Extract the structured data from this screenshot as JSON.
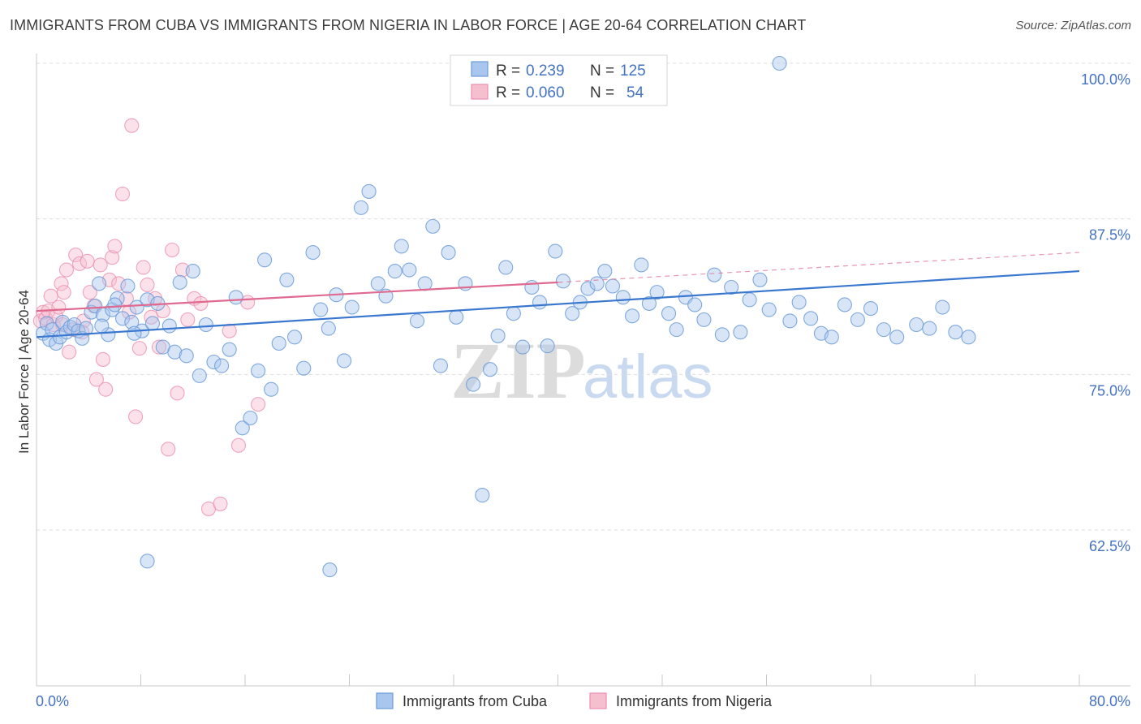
{
  "header": {
    "title": "IMMIGRANTS FROM CUBA VS IMMIGRANTS FROM NIGERIA IN LABOR FORCE | AGE 20-64 CORRELATION CHART",
    "source": "Source: ZipAtlas.com"
  },
  "watermark": {
    "zip": "ZIP",
    "atlas": "atlas"
  },
  "legend": {
    "r_label": "R =",
    "n_label": "N =",
    "cuba": {
      "r": "0.239",
      "n": "125"
    },
    "nigeria": {
      "r": "0.060",
      "n": "54"
    }
  },
  "bottom_legend": {
    "cuba": "Immigrants from Cuba",
    "nigeria": "Immigrants from Nigeria"
  },
  "colors": {
    "cuba_fill": "#a8c6ee",
    "cuba_stroke": "#6b9bd8",
    "cuba_line": "#3a78d0",
    "nigeria_fill": "#f6bfd0",
    "nigeria_stroke": "#ec8fae",
    "nigeria_line": "#e0698f"
  },
  "chart_data": {
    "type": "scatter",
    "title": "IMMIGRANTS FROM CUBA VS IMMIGRANTS FROM NIGERIA IN LABOR FORCE | AGE 20-64 CORRELATION CHART",
    "xlabel": "",
    "ylabel": "In Labor Force | Age 20-64",
    "xlim": [
      0,
      80
    ],
    "ylim": [
      52,
      101
    ],
    "x_tick_labels": [
      "0.0%",
      "80.0%"
    ],
    "y_ticks": [
      62.5,
      75.0,
      87.5,
      100.0
    ],
    "y_tick_labels": [
      "62.5%",
      "75.0%",
      "87.5%",
      "100.0%"
    ],
    "grid": true,
    "series": [
      {
        "name": "Immigrants from Cuba",
        "r": 0.239,
        "n": 125,
        "trend": {
          "x0": 0,
          "y0": 78.0,
          "x1": 80,
          "y1": 83.3
        },
        "points": [
          [
            0.5,
            78.3
          ],
          [
            0.8,
            79.1
          ],
          [
            1.0,
            77.8
          ],
          [
            1.2,
            78.6
          ],
          [
            1.5,
            77.5
          ],
          [
            1.8,
            78.0
          ],
          [
            2.0,
            79.2
          ],
          [
            2.3,
            78.4
          ],
          [
            2.6,
            78.8
          ],
          [
            2.9,
            79.0
          ],
          [
            3.2,
            78.5
          ],
          [
            3.5,
            77.9
          ],
          [
            3.8,
            78.7
          ],
          [
            4.2,
            80.0
          ],
          [
            4.5,
            80.5
          ],
          [
            4.8,
            82.3
          ],
          [
            5.1,
            79.8
          ],
          [
            5.5,
            78.2
          ],
          [
            5.8,
            80.2
          ],
          [
            6.2,
            81.1
          ],
          [
            6.6,
            79.5
          ],
          [
            7.0,
            82.1
          ],
          [
            7.3,
            79.2
          ],
          [
            7.7,
            80.4
          ],
          [
            8.1,
            78.5
          ],
          [
            8.5,
            81.0
          ],
          [
            8.9,
            79.1
          ],
          [
            9.3,
            80.7
          ],
          [
            9.7,
            77.2
          ],
          [
            10.2,
            78.9
          ],
          [
            10.6,
            76.8
          ],
          [
            11.0,
            82.4
          ],
          [
            11.5,
            76.5
          ],
          [
            12.0,
            83.3
          ],
          [
            12.5,
            74.9
          ],
          [
            13.0,
            79.0
          ],
          [
            13.6,
            76.0
          ],
          [
            14.2,
            75.7
          ],
          [
            14.8,
            77.0
          ],
          [
            15.3,
            81.2
          ],
          [
            15.8,
            70.7
          ],
          [
            16.4,
            71.5
          ],
          [
            17.0,
            75.3
          ],
          [
            17.5,
            84.2
          ],
          [
            18.0,
            73.8
          ],
          [
            18.6,
            77.5
          ],
          [
            19.2,
            82.6
          ],
          [
            19.8,
            78.0
          ],
          [
            20.5,
            75.5
          ],
          [
            21.2,
            84.8
          ],
          [
            21.8,
            80.2
          ],
          [
            22.4,
            78.7
          ],
          [
            23.0,
            81.4
          ],
          [
            23.6,
            76.1
          ],
          [
            24.2,
            80.4
          ],
          [
            24.9,
            88.4
          ],
          [
            25.5,
            89.7
          ],
          [
            26.2,
            82.3
          ],
          [
            26.8,
            81.3
          ],
          [
            27.5,
            83.3
          ],
          [
            28.0,
            85.3
          ],
          [
            28.6,
            83.4
          ],
          [
            29.2,
            79.3
          ],
          [
            29.8,
            82.3
          ],
          [
            30.4,
            86.9
          ],
          [
            31.0,
            75.7
          ],
          [
            31.6,
            84.8
          ],
          [
            32.2,
            79.6
          ],
          [
            32.9,
            82.3
          ],
          [
            33.5,
            74.2
          ],
          [
            34.2,
            65.3
          ],
          [
            34.8,
            75.4
          ],
          [
            35.4,
            78.1
          ],
          [
            36.0,
            83.6
          ],
          [
            36.6,
            79.9
          ],
          [
            37.3,
            77.2
          ],
          [
            38.0,
            82.0
          ],
          [
            38.6,
            80.8
          ],
          [
            39.2,
            77.3
          ],
          [
            39.8,
            84.9
          ],
          [
            40.4,
            82.5
          ],
          [
            41.1,
            79.9
          ],
          [
            41.7,
            80.8
          ],
          [
            42.3,
            81.9
          ],
          [
            43.0,
            82.3
          ],
          [
            43.6,
            83.3
          ],
          [
            44.2,
            82.1
          ],
          [
            45.0,
            81.2
          ],
          [
            45.7,
            79.7
          ],
          [
            46.4,
            83.8
          ],
          [
            47.0,
            80.7
          ],
          [
            47.6,
            81.6
          ],
          [
            48.5,
            79.9
          ],
          [
            49.1,
            78.6
          ],
          [
            49.8,
            81.2
          ],
          [
            50.5,
            80.6
          ],
          [
            51.2,
            79.4
          ],
          [
            52.0,
            83.0
          ],
          [
            52.6,
            78.2
          ],
          [
            53.3,
            82.0
          ],
          [
            54.0,
            78.4
          ],
          [
            54.7,
            81.0
          ],
          [
            55.5,
            82.6
          ],
          [
            56.2,
            80.2
          ],
          [
            57.0,
            100.0
          ],
          [
            57.8,
            79.3
          ],
          [
            58.5,
            80.8
          ],
          [
            59.4,
            79.5
          ],
          [
            60.2,
            78.3
          ],
          [
            61.0,
            78.0
          ],
          [
            62.0,
            80.6
          ],
          [
            63.0,
            79.4
          ],
          [
            64.0,
            80.3
          ],
          [
            65.0,
            78.6
          ],
          [
            66.0,
            78.0
          ],
          [
            67.5,
            79.0
          ],
          [
            68.5,
            78.7
          ],
          [
            69.5,
            80.4
          ],
          [
            70.5,
            78.4
          ],
          [
            71.5,
            78.0
          ],
          [
            5.0,
            78.9
          ],
          [
            6.0,
            80.6
          ],
          [
            7.5,
            78.3
          ],
          [
            8.5,
            60.0
          ],
          [
            22.5,
            59.3
          ]
        ]
      },
      {
        "name": "Immigrants from Nigeria",
        "r": 0.06,
        "n": 54,
        "trend": {
          "x0": 0,
          "y0": 80.1,
          "x1": 40,
          "y1": 82.4,
          "dashed_to_x": 80,
          "dashed_to_y": 84.8
        },
        "points": [
          [
            0.3,
            79.3
          ],
          [
            0.5,
            80.0
          ],
          [
            0.7,
            79.5
          ],
          [
            0.9,
            80.1
          ],
          [
            1.1,
            81.3
          ],
          [
            1.3,
            79.0
          ],
          [
            1.5,
            79.7
          ],
          [
            1.7,
            80.4
          ],
          [
            1.9,
            82.3
          ],
          [
            2.1,
            81.6
          ],
          [
            2.3,
            83.4
          ],
          [
            2.5,
            76.8
          ],
          [
            2.8,
            78.6
          ],
          [
            3.0,
            84.6
          ],
          [
            3.3,
            83.9
          ],
          [
            3.6,
            79.3
          ],
          [
            3.9,
            84.1
          ],
          [
            4.1,
            81.6
          ],
          [
            4.4,
            80.5
          ],
          [
            4.6,
            74.6
          ],
          [
            4.9,
            83.8
          ],
          [
            5.1,
            76.2
          ],
          [
            5.3,
            73.8
          ],
          [
            5.6,
            82.6
          ],
          [
            5.8,
            84.4
          ],
          [
            6.0,
            85.3
          ],
          [
            6.3,
            82.3
          ],
          [
            6.6,
            89.5
          ],
          [
            6.9,
            81.1
          ],
          [
            7.1,
            80.0
          ],
          [
            7.3,
            95.0
          ],
          [
            7.6,
            71.6
          ],
          [
            7.9,
            77.1
          ],
          [
            8.2,
            83.6
          ],
          [
            8.5,
            82.2
          ],
          [
            8.8,
            79.6
          ],
          [
            9.1,
            81.1
          ],
          [
            9.4,
            77.2
          ],
          [
            9.7,
            80.1
          ],
          [
            10.1,
            69.0
          ],
          [
            10.4,
            85.0
          ],
          [
            10.8,
            73.5
          ],
          [
            11.2,
            83.4
          ],
          [
            11.6,
            79.4
          ],
          [
            12.1,
            81.1
          ],
          [
            12.6,
            80.7
          ],
          [
            13.2,
            64.2
          ],
          [
            14.1,
            64.6
          ],
          [
            14.8,
            78.5
          ],
          [
            15.5,
            69.3
          ],
          [
            16.2,
            80.8
          ],
          [
            17.0,
            72.6
          ],
          [
            2.0,
            79.0
          ],
          [
            3.5,
            78.4
          ]
        ]
      }
    ]
  }
}
